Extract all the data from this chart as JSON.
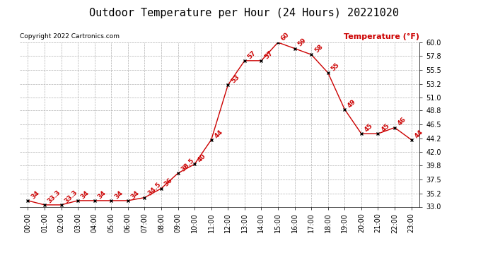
{
  "title": "Outdoor Temperature per Hour (24 Hours) 20221020",
  "copyright": "Copyright 2022 Cartronics.com",
  "legend_label": "Temperature (°F)",
  "hours": [
    "00:00",
    "01:00",
    "02:00",
    "03:00",
    "04:00",
    "05:00",
    "06:00",
    "07:00",
    "08:00",
    "09:00",
    "10:00",
    "11:00",
    "12:00",
    "13:00",
    "14:00",
    "15:00",
    "16:00",
    "17:00",
    "18:00",
    "19:00",
    "20:00",
    "21:00",
    "22:00",
    "23:00"
  ],
  "temperatures": [
    34,
    33.3,
    33.3,
    34,
    34,
    34,
    34,
    34.5,
    36,
    38.5,
    40,
    44,
    53,
    57,
    57,
    60,
    59,
    58,
    55,
    49,
    45,
    45,
    46,
    44
  ],
  "line_color": "#cc0000",
  "marker_color": "#000000",
  "label_color": "#cc0000",
  "grid_color": "#b0b0b0",
  "background_color": "#ffffff",
  "title_color": "#000000",
  "copyright_color": "#000000",
  "legend_color": "#cc0000",
  "ylim": [
    33.0,
    60.0
  ],
  "yticks": [
    33.0,
    35.2,
    37.5,
    39.8,
    42.0,
    44.2,
    46.5,
    48.8,
    51.0,
    53.2,
    55.5,
    57.8,
    60.0
  ],
  "title_fontsize": 11,
  "label_fontsize": 6.5,
  "axis_fontsize": 7,
  "copyright_fontsize": 6.5,
  "legend_fontsize": 8
}
